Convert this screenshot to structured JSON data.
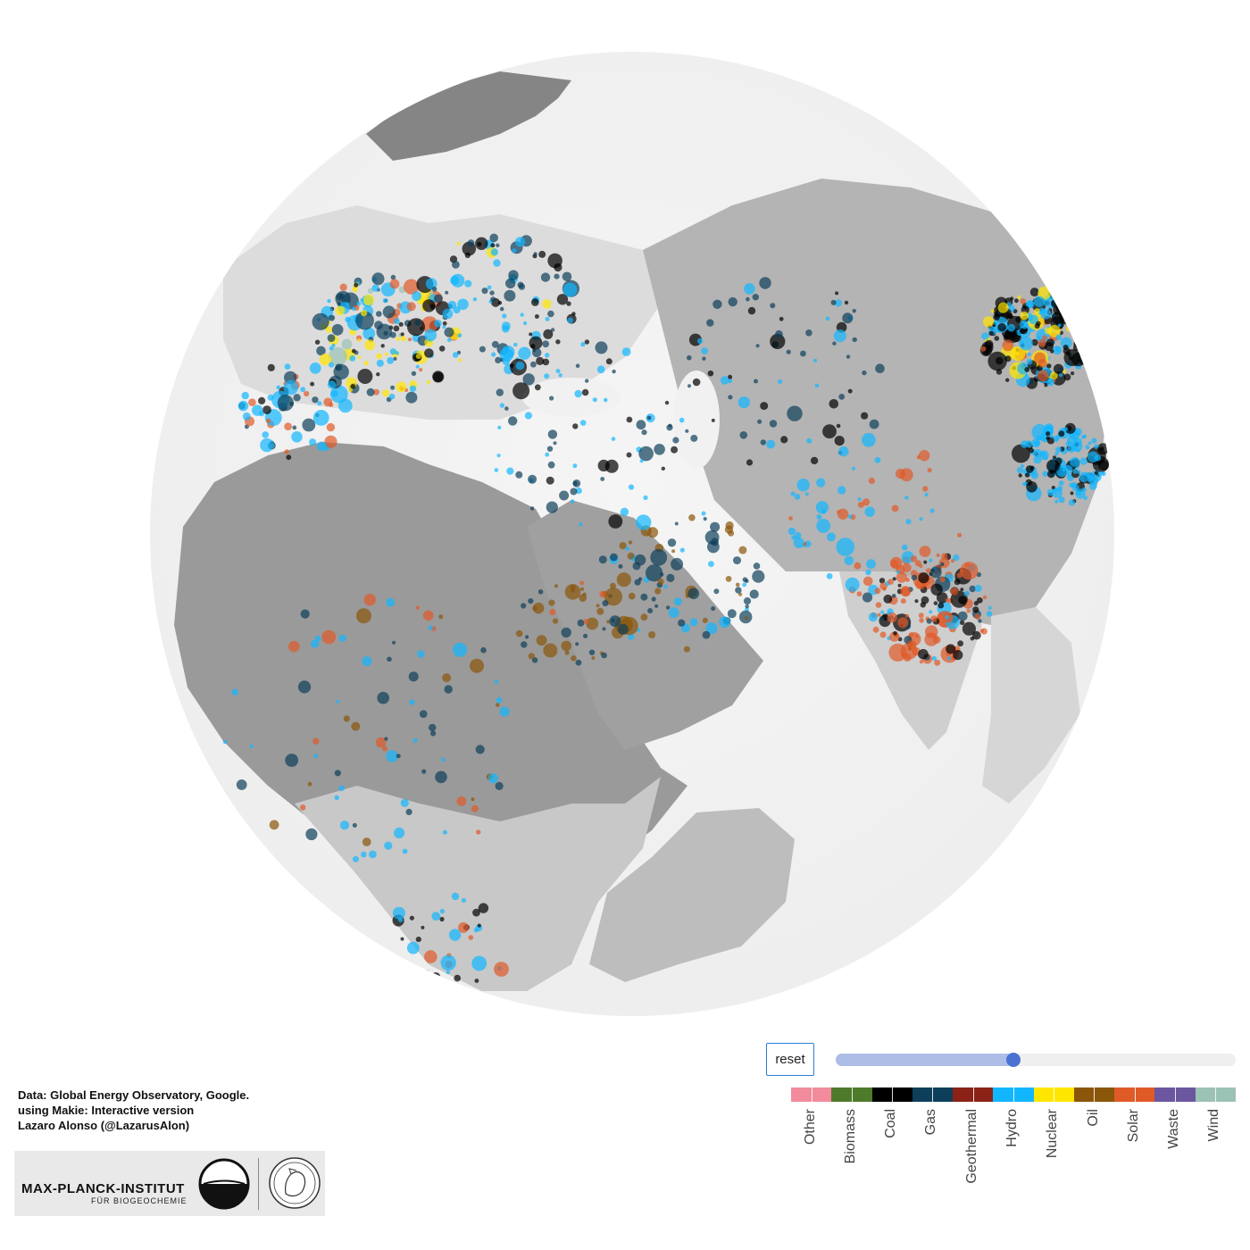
{
  "map": {
    "projection": "orthographic globe",
    "center": {
      "lat": 25,
      "lon": 45
    },
    "basemap": "grayscale land surface",
    "point_categories": [
      "Other",
      "Biomass",
      "Coal",
      "Gas",
      "Geothermal",
      "Hydro",
      "Nuclear",
      "Oil",
      "Solar",
      "Waste",
      "Wind"
    ]
  },
  "controls": {
    "reset_label": "reset",
    "slider_fraction": 0.445
  },
  "legend": {
    "items": [
      {
        "label": "Other",
        "color": "#f28b9b"
      },
      {
        "label": "Biomass",
        "color": "#4e7a2c"
      },
      {
        "label": "Coal",
        "color": "#000000"
      },
      {
        "label": "Gas",
        "color": "#0d3f5a"
      },
      {
        "label": "Geothermal",
        "color": "#8b2218"
      },
      {
        "label": "Hydro",
        "color": "#11b6ff"
      },
      {
        "label": "Nuclear",
        "color": "#ffe600"
      },
      {
        "label": "Oil",
        "color": "#8a560a"
      },
      {
        "label": "Solar",
        "color": "#e05a28"
      },
      {
        "label": "Waste",
        "color": "#6b56a0"
      },
      {
        "label": "Wind",
        "color": "#9bc2b4"
      }
    ]
  },
  "credits": {
    "line1": "Data: Global Energy Observatory, Google.",
    "line2": "using Makie: Interactive version",
    "line3": "Lazaro Alonso (@LazarusAlon)"
  },
  "logo": {
    "main": "MAX-PLANCK-INSTITUT",
    "sub": "FÜR BIOGEOCHEMIE"
  }
}
